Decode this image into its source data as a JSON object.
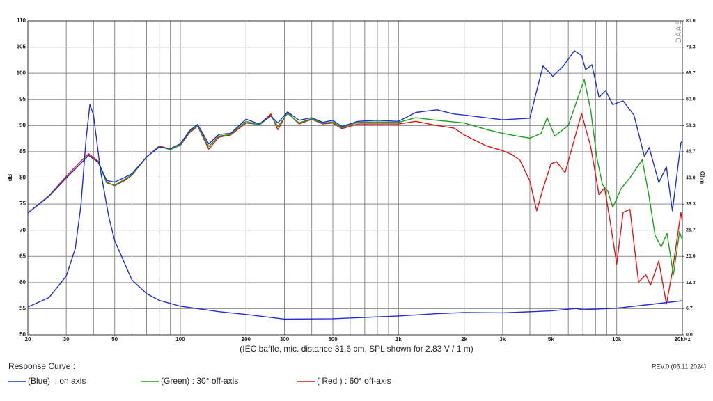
{
  "chart_data": {
    "type": "line",
    "xlog": true,
    "grid": true,
    "ylabel": "dB",
    "y2label": "Ohm",
    "watermark": "DAAS",
    "annotation": "(IEC baffle, mic. distance 31.6 cm, SPL shown for 2.83 V / 1 m)",
    "legend_title": "Response Curve :",
    "revision": "REV.0 (06.11.2024)",
    "xlim": [
      20,
      20000
    ],
    "xticks": [
      20,
      30,
      50,
      100,
      200,
      300,
      500,
      {
        "value": 1000,
        "label": "1k"
      },
      {
        "value": 2000,
        "label": "2k"
      },
      {
        "value": 3000,
        "label": "3k"
      },
      {
        "value": 5000,
        "label": "5k"
      },
      {
        "value": 10000,
        "label": "10k"
      },
      {
        "value": 20000,
        "label": "20kHz"
      }
    ],
    "xminorticks": [
      40,
      60,
      70,
      80,
      90,
      400,
      600,
      700,
      800,
      900,
      4000,
      6000,
      7000,
      8000,
      9000
    ],
    "ylim": [
      50,
      110
    ],
    "yticks": [
      50,
      55,
      60,
      65,
      70,
      75,
      80,
      85,
      90,
      95,
      100,
      105,
      110
    ],
    "y2lim": [
      0,
      80
    ],
    "y2ticks": [
      {
        "value": 0,
        "label": "0.0"
      },
      6.7,
      13.3,
      {
        "value": 20,
        "label": "20.0"
      },
      26.7,
      33.3,
      {
        "value": 40,
        "label": "40.0"
      },
      46.7,
      53.3,
      {
        "value": 60,
        "label": "60.0"
      },
      66.7,
      73.3,
      {
        "value": 80,
        "label": "80.0"
      }
    ],
    "series": [
      {
        "name": "(Blue)  : on axis",
        "color": "#1f2fd0",
        "x": [
          20,
          25,
          30,
          35,
          38,
          42,
          46,
          50,
          55,
          60,
          70,
          80,
          90,
          100,
          110,
          120,
          135,
          150,
          170,
          200,
          230,
          260,
          280,
          310,
          350,
          400,
          450,
          500,
          550,
          650,
          800,
          1000,
          1200,
          1500,
          1800,
          2000,
          2500,
          3000,
          4000,
          4300,
          4600,
          5100,
          5700,
          6400,
          6900,
          7200,
          7700,
          8300,
          8900,
          9600,
          10700,
          12000,
          13400,
          14100,
          15600,
          16900,
          18000,
          19700,
          20000
        ],
        "values": [
          73.3,
          76.5,
          80,
          82.8,
          84.3,
          83,
          79.5,
          79.2,
          80,
          80.8,
          84,
          85.9,
          85.6,
          86.5,
          89,
          90.2,
          86.5,
          88.3,
          88.5,
          91.2,
          90.3,
          91.8,
          90.5,
          92.6,
          91,
          91.5,
          90.6,
          91,
          89.8,
          90.8,
          91,
          90.8,
          92.5,
          93,
          92.2,
          92,
          91.5,
          91.1,
          91.4,
          96.7,
          101.4,
          99.4,
          101.4,
          104.3,
          103.4,
          100.7,
          101.6,
          95.4,
          96.7,
          94,
          94.7,
          92,
          84.1,
          85.8,
          79.1,
          82.1,
          73.7,
          86.7,
          87.1
        ]
      },
      {
        "name": "(Green) : 30° off-axis",
        "color": "#1aa01a",
        "x": [
          20,
          25,
          30,
          35,
          38,
          42,
          46,
          50,
          55,
          60,
          70,
          80,
          90,
          100,
          110,
          120,
          135,
          150,
          170,
          200,
          230,
          260,
          280,
          310,
          350,
          400,
          450,
          500,
          550,
          650,
          800,
          1000,
          1200,
          1500,
          2000,
          2500,
          3000,
          3500,
          4000,
          4500,
          4800,
          5200,
          6000,
          6600,
          7100,
          7600,
          8100,
          8600,
          9100,
          9600,
          10500,
          11500,
          13100,
          14000,
          15000,
          16000,
          17000,
          18200,
          19400,
          20000
        ],
        "values": [
          73.3,
          76.5,
          80,
          82.8,
          84.3,
          83,
          79,
          78.6,
          79.6,
          80.6,
          84,
          86,
          85.4,
          86.3,
          88.8,
          90,
          86,
          88,
          88.3,
          90.8,
          90.1,
          91.9,
          89.8,
          92.3,
          90.5,
          91.3,
          90.4,
          90.7,
          89.6,
          90.6,
          90.7,
          90.6,
          91.5,
          91,
          90.5,
          89.3,
          88.5,
          88,
          87.6,
          88.5,
          91.5,
          88,
          90,
          95,
          98.8,
          93,
          84,
          78.7,
          77.5,
          74.4,
          78,
          80,
          83.5,
          77,
          69,
          66.8,
          69.4,
          61.5,
          69.7,
          68.1
        ]
      },
      {
        "name": "( Red ) : 60° off-axis",
        "color": "#e01414",
        "x": [
          20,
          25,
          30,
          35,
          38,
          42,
          46,
          50,
          55,
          60,
          70,
          80,
          90,
          100,
          110,
          120,
          135,
          150,
          170,
          200,
          230,
          260,
          280,
          310,
          350,
          400,
          450,
          500,
          550,
          650,
          800,
          1000,
          1200,
          1500,
          1800,
          2000,
          2500,
          3000,
          3300,
          3600,
          4000,
          4300,
          4600,
          5000,
          5300,
          5800,
          6900,
          7600,
          8300,
          8800,
          9300,
          10000,
          10700,
          11500,
          12600,
          13600,
          14300,
          15600,
          16900,
          18000,
          19700,
          20000
        ],
        "values": [
          73.3,
          76.6,
          80.3,
          83.2,
          84.6,
          83.2,
          79.2,
          78.5,
          79.4,
          80.5,
          84,
          86.1,
          85.5,
          86.2,
          88.6,
          89.9,
          85.5,
          87.8,
          88.2,
          90.5,
          90.2,
          92.2,
          89.2,
          92.5,
          90.3,
          91.2,
          90.3,
          90.5,
          89.4,
          90.3,
          90.3,
          90.3,
          90.8,
          90,
          89.5,
          88.2,
          86.2,
          85.2,
          84.5,
          83.4,
          79.4,
          73.7,
          78,
          82.7,
          83.1,
          81,
          92.3,
          86,
          76.8,
          78.1,
          72.1,
          63.5,
          73.4,
          74,
          60.1,
          61.5,
          59.5,
          64.1,
          55.9,
          62.1,
          73.4,
          71.7
        ]
      },
      {
        "color": "#1f2fd0",
        "axis": "y2",
        "x": [
          20,
          25,
          30,
          33,
          35,
          37,
          38.5,
          40,
          43,
          47,
          50,
          60,
          70,
          80,
          100,
          150,
          200,
          300,
          500,
          1000,
          1500,
          2000,
          3000,
          5000,
          6500,
          7000,
          10000,
          15000,
          20000
        ],
        "values": [
          7.1,
          9.5,
          15,
          22,
          33,
          50,
          58.7,
          56,
          42,
          30,
          24,
          14,
          10.5,
          8.8,
          7.3,
          5.9,
          5.2,
          4.0,
          4.1,
          4.8,
          5.4,
          5.7,
          5.6,
          6.1,
          6.7,
          6.4,
          6.8,
          7.9,
          8.7
        ]
      }
    ]
  }
}
